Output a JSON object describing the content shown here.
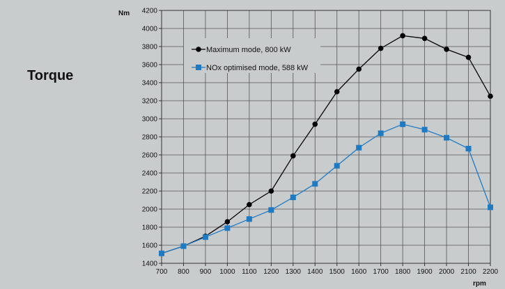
{
  "page": {
    "side_title": "Torque"
  },
  "chart_data": {
    "type": "line",
    "ylabel": "Nm",
    "xlabel": "rpm",
    "xlim": [
      700,
      2200
    ],
    "ylim": [
      1400,
      4200
    ],
    "x_ticks": [
      700,
      800,
      900,
      1000,
      1100,
      1200,
      1300,
      1400,
      1500,
      1600,
      1700,
      1800,
      1900,
      2000,
      2100,
      2200
    ],
    "y_ticks": [
      1400,
      1600,
      1800,
      2000,
      2200,
      2400,
      2600,
      2800,
      3000,
      3200,
      3400,
      3600,
      3800,
      4000,
      4200
    ],
    "grid": true,
    "legend_position": "top-left",
    "x": [
      700,
      800,
      900,
      1000,
      1100,
      1200,
      1300,
      1400,
      1500,
      1600,
      1700,
      1800,
      1900,
      2000,
      2100,
      2200
    ],
    "series": [
      {
        "name": "Maximum mode, 800 kW",
        "color": "#000000",
        "marker": "circle",
        "values": [
          1510,
          1590,
          1700,
          1860,
          2050,
          2200,
          2590,
          2940,
          3300,
          3550,
          3780,
          3920,
          3890,
          3770,
          3680,
          3250
        ]
      },
      {
        "name": "NOx optimised mode, 588 kW",
        "color": "#1f7ac4",
        "marker": "square",
        "values": [
          1510,
          1590,
          1690,
          1790,
          1890,
          1990,
          2130,
          2280,
          2480,
          2680,
          2840,
          2940,
          2880,
          2790,
          2670,
          2020
        ]
      }
    ]
  }
}
